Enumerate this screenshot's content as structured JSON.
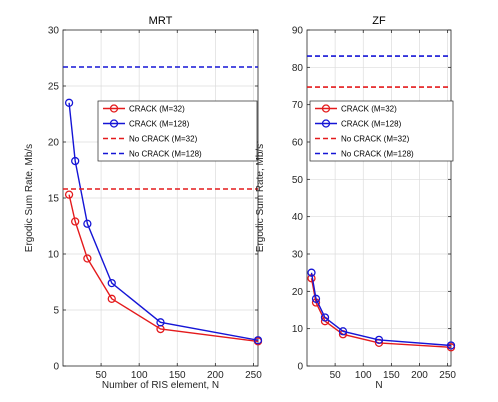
{
  "chart_data": [
    {
      "type": "line",
      "title": "MRT",
      "xlabel": "Number of RIS element, N",
      "ylabel": "Ergodic Sum Rate,  Mb/s",
      "xlim": [
        0,
        256
      ],
      "ylim": [
        0,
        30
      ],
      "xticks": [
        50,
        100,
        150,
        200,
        250
      ],
      "yticks": [
        0,
        5,
        10,
        15,
        20,
        25,
        30
      ],
      "grid": true,
      "legend_position": "upper-right",
      "x": [
        8,
        16,
        32,
        64,
        128,
        256
      ],
      "series": [
        {
          "name": "CRACK (M=32)",
          "color": "#e41a1c",
          "style": "solid",
          "marker": "circle",
          "x": [
            8,
            16,
            32,
            64,
            128,
            256
          ],
          "values": [
            15.3,
            12.9,
            9.6,
            6.0,
            3.3,
            2.2
          ]
        },
        {
          "name": "CRACK (M=128)",
          "color": "#1515d6",
          "style": "solid",
          "marker": "circle",
          "x": [
            8,
            16,
            32,
            64,
            128,
            256
          ],
          "values": [
            23.5,
            18.3,
            12.7,
            7.4,
            3.9,
            2.3
          ]
        },
        {
          "name": "No CRACK (M=32)",
          "color": "#e41a1c",
          "style": "dashed",
          "marker": "none",
          "x": [
            0,
            256
          ],
          "values": [
            15.8,
            15.8
          ]
        },
        {
          "name": "No CRACK (M=128)",
          "color": "#1515d6",
          "style": "dashed",
          "marker": "none",
          "x": [
            0,
            256
          ],
          "values": [
            26.7,
            26.7
          ]
        }
      ]
    },
    {
      "type": "line",
      "title": "ZF",
      "xlabel": "N",
      "ylabel": "Ergodic Sum Rate,  Mb/s",
      "xlim": [
        0,
        256
      ],
      "ylim": [
        0,
        90
      ],
      "xticks": [
        50,
        100,
        150,
        200,
        250
      ],
      "yticks": [
        0,
        10,
        20,
        30,
        40,
        50,
        60,
        70,
        80,
        90
      ],
      "grid": true,
      "legend_position": "upper-right",
      "x": [
        8,
        16,
        32,
        64,
        128,
        256
      ],
      "series": [
        {
          "name": "CRACK (M=32)",
          "color": "#e41a1c",
          "style": "solid",
          "marker": "circle",
          "x": [
            8,
            16,
            32,
            64,
            128,
            256
          ],
          "values": [
            23.5,
            17.0,
            12.0,
            8.5,
            6.2,
            5.0
          ]
        },
        {
          "name": "CRACK (M=128)",
          "color": "#1515d6",
          "style": "solid",
          "marker": "circle",
          "x": [
            8,
            16,
            32,
            64,
            128,
            256
          ],
          "values": [
            25.0,
            18.0,
            13.0,
            9.3,
            7.0,
            5.5
          ]
        },
        {
          "name": "No CRACK (M=32)",
          "color": "#e41a1c",
          "style": "dashed",
          "marker": "none",
          "x": [
            0,
            256
          ],
          "values": [
            74.7,
            74.7
          ]
        },
        {
          "name": "No CRACK (M=128)",
          "color": "#1515d6",
          "style": "dashed",
          "marker": "none",
          "x": [
            0,
            256
          ],
          "values": [
            83.0,
            83.0
          ]
        }
      ]
    }
  ]
}
